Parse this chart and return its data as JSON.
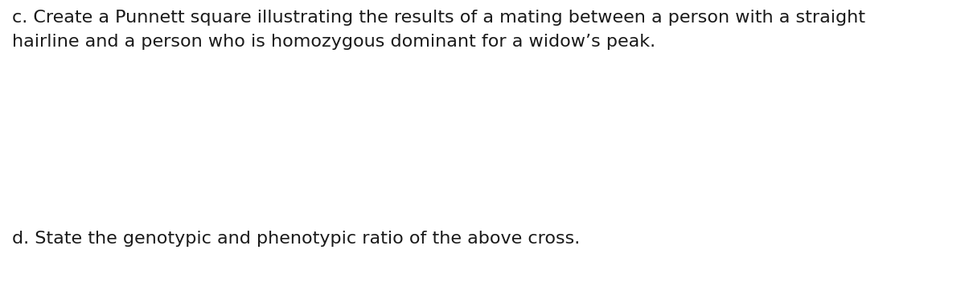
{
  "background_color": "#ffffff",
  "text_color": "#1a1a1a",
  "line1": "c. Create a Punnett square illustrating the results of a mating between a person with a straight",
  "line2": "hairline and a person who is homozygous dominant for a widow’s peak.",
  "line3": "d. State the genotypic and phenotypic ratio of the above cross.",
  "font_size": 16,
  "fig_width": 12.0,
  "fig_height": 3.72,
  "dpi": 100
}
